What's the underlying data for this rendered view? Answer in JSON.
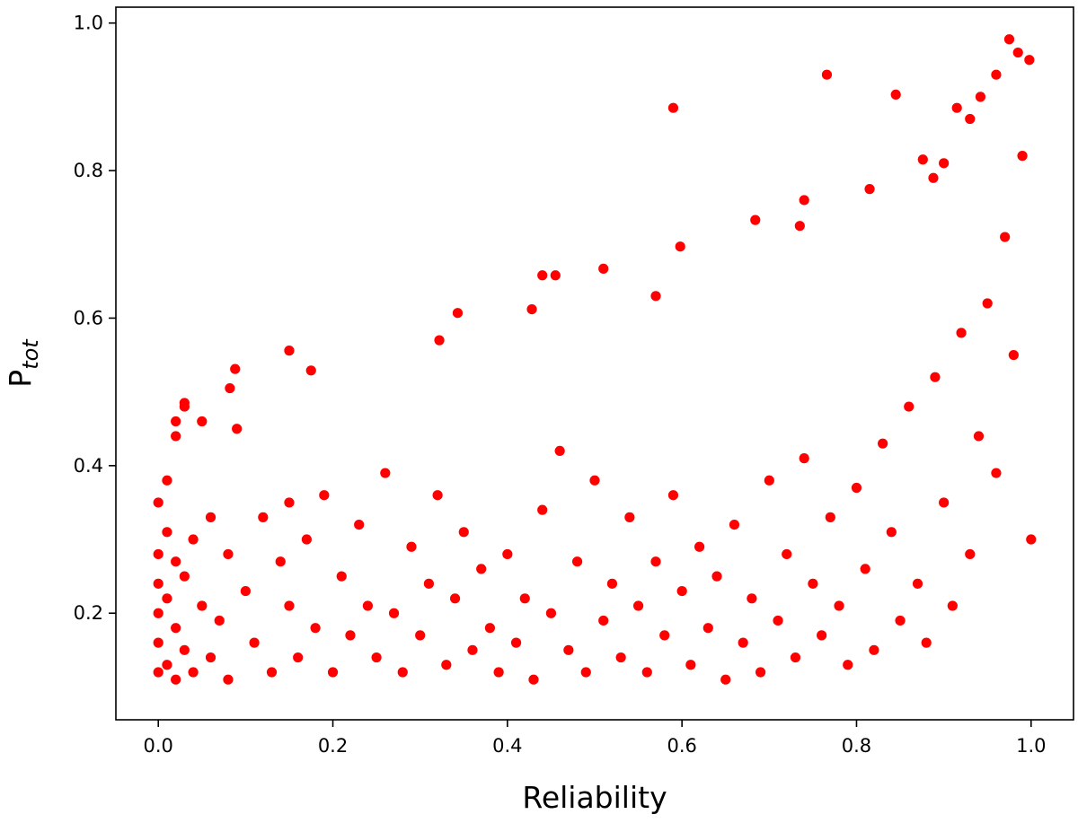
{
  "chart_data": {
    "type": "scatter",
    "title": "",
    "xlabel": "Reliability",
    "ylabel": {
      "main": "P",
      "subscript": "tot"
    },
    "xlim": [
      -0.0486,
      1.0486
    ],
    "ylim": [
      0.0555,
      1.0215
    ],
    "xticks": [
      0.0,
      0.2,
      0.4,
      0.6,
      0.8,
      1.0
    ],
    "xtick_labels": [
      "0.0",
      "0.2",
      "0.4",
      "0.6",
      "0.8",
      "1.0"
    ],
    "yticks": [
      0.2,
      0.4,
      0.6,
      0.8,
      1.0
    ],
    "ytick_labels": [
      "0.2",
      "0.4",
      "0.6",
      "0.8",
      "1.0"
    ],
    "grid": false,
    "legend": "none",
    "marker_color": "#ff0000",
    "marker_shape": "circle",
    "series": [
      {
        "x": [
          0.0,
          0.0,
          0.0,
          0.0,
          0.0,
          0.0,
          0.01,
          0.01,
          0.01,
          0.01,
          0.02,
          0.02,
          0.02,
          0.02,
          0.03,
          0.03,
          0.03,
          0.04,
          0.04,
          0.05,
          0.05,
          0.06,
          0.06,
          0.07,
          0.08,
          0.08,
          0.09,
          0.1,
          0.11,
          0.12,
          0.13,
          0.14,
          0.15,
          0.15,
          0.16,
          0.17,
          0.18,
          0.19,
          0.2,
          0.21,
          0.22,
          0.23,
          0.24,
          0.25,
          0.26,
          0.27,
          0.28,
          0.29,
          0.3,
          0.31,
          0.32,
          0.33,
          0.34,
          0.35,
          0.36,
          0.37,
          0.38,
          0.39,
          0.4,
          0.41,
          0.42,
          0.43,
          0.44,
          0.45,
          0.46,
          0.47,
          0.48,
          0.49,
          0.5,
          0.51,
          0.52,
          0.53,
          0.54,
          0.55,
          0.56,
          0.57,
          0.58,
          0.59,
          0.6,
          0.61,
          0.62,
          0.63,
          0.64,
          0.65,
          0.66,
          0.67,
          0.68,
          0.69,
          0.7,
          0.71,
          0.72,
          0.73,
          0.74,
          0.75,
          0.76,
          0.77,
          0.78,
          0.79,
          0.8,
          0.81,
          0.82,
          0.83,
          0.84,
          0.85,
          0.86,
          0.87,
          0.88,
          0.89,
          0.9,
          0.91,
          0.92,
          0.93,
          0.94,
          0.95,
          0.96,
          0.97,
          0.98,
          0.99,
          1.0,
          0.59,
          0.766,
          0.845,
          0.915,
          0.975,
          0.998,
          0.985,
          0.96,
          0.942,
          0.93,
          0.9,
          0.888,
          0.815,
          0.876,
          0.74,
          0.735,
          0.684,
          0.598,
          0.57,
          0.51,
          0.455,
          0.44,
          0.428,
          0.343,
          0.322,
          0.15,
          0.175,
          0.088,
          0.082,
          0.03,
          0.02
        ],
        "y": [
          0.12,
          0.2,
          0.28,
          0.35,
          0.16,
          0.24,
          0.13,
          0.22,
          0.31,
          0.38,
          0.11,
          0.18,
          0.27,
          0.44,
          0.15,
          0.25,
          0.48,
          0.12,
          0.3,
          0.21,
          0.46,
          0.14,
          0.33,
          0.19,
          0.28,
          0.11,
          0.45,
          0.23,
          0.16,
          0.33,
          0.12,
          0.27,
          0.21,
          0.35,
          0.14,
          0.3,
          0.18,
          0.36,
          0.12,
          0.25,
          0.17,
          0.32,
          0.21,
          0.14,
          0.39,
          0.2,
          0.12,
          0.29,
          0.17,
          0.24,
          0.36,
          0.13,
          0.22,
          0.31,
          0.15,
          0.26,
          0.18,
          0.12,
          0.28,
          0.16,
          0.22,
          0.11,
          0.34,
          0.2,
          0.42,
          0.15,
          0.27,
          0.12,
          0.38,
          0.19,
          0.24,
          0.14,
          0.33,
          0.21,
          0.12,
          0.27,
          0.17,
          0.36,
          0.23,
          0.13,
          0.29,
          0.18,
          0.25,
          0.11,
          0.32,
          0.16,
          0.22,
          0.12,
          0.38,
          0.19,
          0.28,
          0.14,
          0.41,
          0.24,
          0.17,
          0.33,
          0.21,
          0.13,
          0.37,
          0.26,
          0.15,
          0.43,
          0.31,
          0.19,
          0.48,
          0.24,
          0.16,
          0.52,
          0.35,
          0.21,
          0.58,
          0.28,
          0.44,
          0.62,
          0.39,
          0.71,
          0.55,
          0.82,
          0.3,
          0.885,
          0.93,
          0.903,
          0.885,
          0.978,
          0.95,
          0.96,
          0.93,
          0.9,
          0.87,
          0.81,
          0.79,
          0.775,
          0.815,
          0.76,
          0.725,
          0.733,
          0.697,
          0.63,
          0.667,
          0.658,
          0.658,
          0.612,
          0.607,
          0.57,
          0.556,
          0.529,
          0.531,
          0.505,
          0.485,
          0.46
        ]
      }
    ]
  }
}
